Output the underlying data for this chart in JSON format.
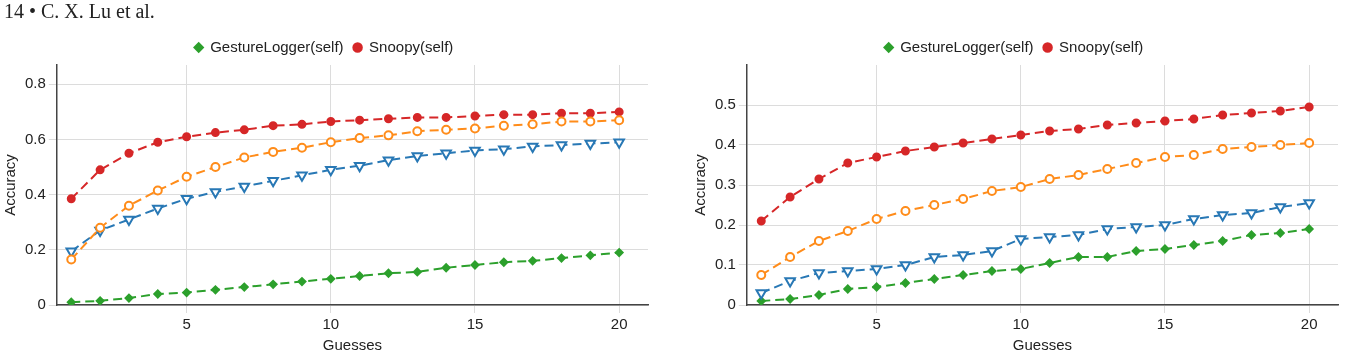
{
  "chart_data": [
    {
      "type": "line",
      "xlabel": "Guesses",
      "ylabel": "Accuracy",
      "annotations": [
        "14 • C. X. Lu et al."
      ],
      "x": [
        1,
        2,
        3,
        4,
        5,
        6,
        7,
        8,
        9,
        10,
        11,
        12,
        13,
        14,
        15,
        16,
        17,
        18,
        19,
        20
      ],
      "xlim": [
        0.5,
        21
      ],
      "xticks": [
        5,
        10,
        15,
        20
      ],
      "ylim": [
        0,
        0.87
      ],
      "yticks": [
        0,
        0.2,
        0.4,
        0.6,
        0.8
      ],
      "grid": true,
      "legend": "top",
      "series": [
        {
          "color": "#ff8c1a",
          "marker": "circle",
          "line_style": "dashed",
          "values": [
            0.165,
            0.28,
            0.36,
            0.415,
            0.465,
            0.5,
            0.535,
            0.555,
            0.57,
            0.59,
            0.605,
            0.615,
            0.63,
            0.635,
            0.64,
            0.65,
            0.655,
            0.665,
            0.665,
            0.67
          ]
        },
        {
          "color": "#2878b5",
          "marker": "triangle",
          "line_style": "dashed",
          "values": [
            0.195,
            0.27,
            0.31,
            0.35,
            0.385,
            0.41,
            0.43,
            0.45,
            0.47,
            0.49,
            0.505,
            0.525,
            0.54,
            0.55,
            0.56,
            0.565,
            0.575,
            0.58,
            0.585,
            0.59
          ]
        },
        {
          "name": "GestureLogger(self)",
          "color": "#2ca02c",
          "marker": "diamond",
          "line_style": "dashed",
          "values": [
            0.01,
            0.015,
            0.025,
            0.04,
            0.045,
            0.055,
            0.065,
            0.075,
            0.085,
            0.095,
            0.105,
            0.115,
            0.12,
            0.135,
            0.145,
            0.155,
            0.16,
            0.17,
            0.18,
            0.19
          ]
        },
        {
          "name": "Snoopy(self)",
          "color": "#d62728",
          "marker": "circle",
          "line_style": "dashed",
          "values": [
            0.385,
            0.49,
            0.55,
            0.59,
            0.61,
            0.625,
            0.635,
            0.65,
            0.655,
            0.665,
            0.67,
            0.675,
            0.68,
            0.68,
            0.685,
            0.69,
            0.69,
            0.695,
            0.695,
            0.7
          ]
        }
      ]
    },
    {
      "type": "line",
      "xlabel": "Guesses",
      "ylabel": "Accuracy",
      "x": [
        1,
        2,
        3,
        4,
        5,
        6,
        7,
        8,
        9,
        10,
        11,
        12,
        13,
        14,
        15,
        16,
        17,
        18,
        19,
        20
      ],
      "xlim": [
        0.5,
        21
      ],
      "xticks": [
        5,
        10,
        15,
        20
      ],
      "ylim": [
        0,
        0.6
      ],
      "yticks": [
        0,
        0.1,
        0.2,
        0.3,
        0.4,
        0.5
      ],
      "grid": true,
      "legend": "top",
      "series": [
        {
          "color": "#ff8c1a",
          "marker": "circle",
          "line_style": "dashed",
          "values": [
            0.075,
            0.12,
            0.16,
            0.185,
            0.215,
            0.235,
            0.25,
            0.265,
            0.285,
            0.295,
            0.315,
            0.325,
            0.34,
            0.355,
            0.37,
            0.375,
            0.39,
            0.395,
            0.4,
            0.405
          ]
        },
        {
          "color": "#2878b5",
          "marker": "triangle",
          "line_style": "dashed",
          "values": [
            0.03,
            0.06,
            0.08,
            0.085,
            0.09,
            0.1,
            0.12,
            0.125,
            0.135,
            0.165,
            0.17,
            0.175,
            0.19,
            0.195,
            0.2,
            0.215,
            0.225,
            0.23,
            0.245,
            0.255
          ]
        },
        {
          "name": "GestureLogger(self)",
          "color": "#2ca02c",
          "marker": "diamond",
          "line_style": "dashed",
          "values": [
            0.01,
            0.015,
            0.025,
            0.04,
            0.045,
            0.055,
            0.065,
            0.075,
            0.085,
            0.09,
            0.105,
            0.12,
            0.12,
            0.135,
            0.14,
            0.15,
            0.16,
            0.175,
            0.18,
            0.19
          ]
        },
        {
          "name": "Snoopy(self)",
          "color": "#d62728",
          "marker": "circle",
          "line_style": "dashed",
          "values": [
            0.21,
            0.27,
            0.315,
            0.355,
            0.37,
            0.385,
            0.395,
            0.405,
            0.415,
            0.425,
            0.435,
            0.44,
            0.45,
            0.455,
            0.46,
            0.465,
            0.475,
            0.48,
            0.485,
            0.495
          ]
        }
      ]
    }
  ]
}
